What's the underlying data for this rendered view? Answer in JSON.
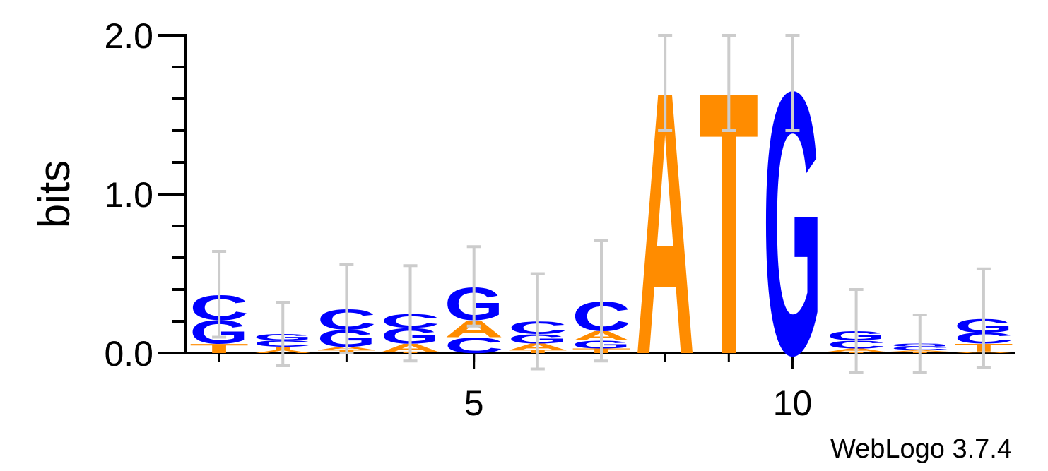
{
  "chart_data": {
    "type": "logo",
    "ylabel": "bits",
    "footer": "WebLogo 3.7.4",
    "x": [
      1,
      2,
      3,
      4,
      5,
      6,
      7,
      8,
      9,
      10,
      11,
      12,
      13
    ],
    "xlim": [
      0.5,
      13.5
    ],
    "xticks": [
      5,
      10
    ],
    "ylim": [
      0,
      2
    ],
    "yticks": [
      {
        "value": 0,
        "label": "0.0"
      },
      {
        "value": 1,
        "label": "1.0"
      },
      {
        "value": 2,
        "label": "2.0"
      }
    ],
    "yminor_ticks": [
      0.2,
      0.4,
      0.6,
      0.8,
      1.2,
      1.4,
      1.6,
      1.8
    ],
    "colors": {
      "A": "#ff8c00",
      "T": "#ff8c00",
      "C": "#0000ff",
      "G": "#0000ff"
    },
    "error_color": "#cccccc",
    "stacks": [
      [
        {
          "letter": "T",
          "height": 0.06
        },
        {
          "letter": "G",
          "height": 0.15
        },
        {
          "letter": "C",
          "height": 0.16
        }
      ],
      [
        {
          "letter": "A",
          "height": 0.02
        },
        {
          "letter": "T",
          "height": 0.02
        },
        {
          "letter": "C",
          "height": 0.04
        },
        {
          "letter": "G",
          "height": 0.04
        }
      ],
      [
        {
          "letter": "T",
          "height": 0.02
        },
        {
          "letter": "A",
          "height": 0.02
        },
        {
          "letter": "G",
          "height": 0.11
        },
        {
          "letter": "C",
          "height": 0.13
        }
      ],
      [
        {
          "letter": "T",
          "height": 0.01
        },
        {
          "letter": "A",
          "height": 0.05
        },
        {
          "letter": "G",
          "height": 0.1
        },
        {
          "letter": "C",
          "height": 0.09
        }
      ],
      [
        {
          "letter": "C",
          "height": 0.1
        },
        {
          "letter": "A",
          "height": 0.11
        },
        {
          "letter": "G",
          "height": 0.21
        }
      ],
      [
        {
          "letter": "T",
          "height": 0.02
        },
        {
          "letter": "A",
          "height": 0.04
        },
        {
          "letter": "G",
          "height": 0.06
        },
        {
          "letter": "C",
          "height": 0.08
        }
      ],
      [
        {
          "letter": "T",
          "height": 0.03
        },
        {
          "letter": "G",
          "height": 0.05
        },
        {
          "letter": "A",
          "height": 0.06
        },
        {
          "letter": "C",
          "height": 0.19
        }
      ],
      [
        {
          "letter": "A",
          "height": 1.7
        }
      ],
      [
        {
          "letter": "T",
          "height": 1.7
        }
      ],
      [
        {
          "letter": "G",
          "height": 1.7
        }
      ],
      [
        {
          "letter": "T",
          "height": 0.01
        },
        {
          "letter": "A",
          "height": 0.02
        },
        {
          "letter": "C",
          "height": 0.05
        },
        {
          "letter": "G",
          "height": 0.06
        }
      ],
      [
        {
          "letter": "T",
          "height": 0.01
        },
        {
          "letter": "A",
          "height": 0.01
        },
        {
          "letter": "C",
          "height": 0.02
        },
        {
          "letter": "G",
          "height": 0.02
        }
      ],
      [
        {
          "letter": "A",
          "height": 0.01
        },
        {
          "letter": "T",
          "height": 0.05
        },
        {
          "letter": "C",
          "height": 0.07
        },
        {
          "letter": "G",
          "height": 0.09
        }
      ]
    ],
    "errors": [
      0.27,
      0.2,
      0.28,
      0.3,
      0.25,
      0.3,
      0.38,
      0.3,
      0.3,
      0.3,
      0.26,
      0.18,
      0.31
    ]
  }
}
